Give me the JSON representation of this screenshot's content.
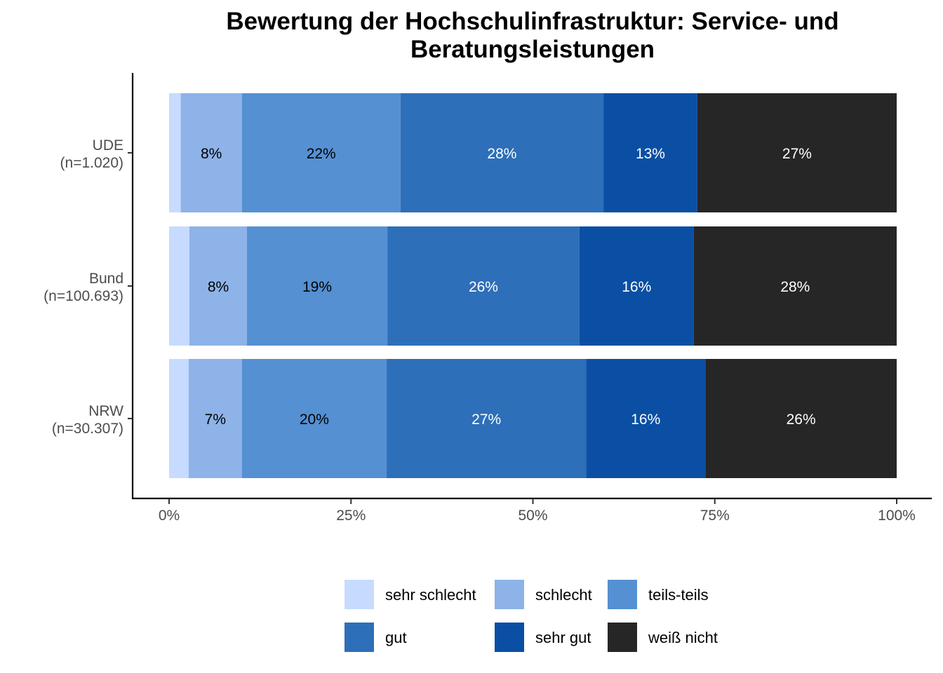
{
  "chart_data": {
    "type": "bar",
    "orientation": "horizontal",
    "stacked": true,
    "title": "Bewertung der Hochschulinfrastruktur: Service- und Beratungsleistungen",
    "title_lines": [
      "Bewertung der Hochschulinfrastruktur: Service- und",
      "Beratungsleistungen"
    ],
    "categories": [
      {
        "name": "UDE",
        "n": "(n=1.020)"
      },
      {
        "name": "Bund",
        "n": "(n=100.693)"
      },
      {
        "name": "NRW",
        "n": "(n=30.307)"
      }
    ],
    "series": [
      {
        "name": "sehr schlecht",
        "color": "#c6dbff",
        "label_color": "#000000",
        "values": [
          1.6,
          2.8,
          2.7
        ],
        "labels": [
          "",
          "",
          ""
        ]
      },
      {
        "name": "schlecht",
        "color": "#8db3e8",
        "label_color": "#000000",
        "values": [
          8.4,
          7.9,
          7.3
        ],
        "labels": [
          "8%",
          "8%",
          "7%"
        ]
      },
      {
        "name": "teils-teils",
        "color": "#5590d2",
        "label_color": "#000000",
        "values": [
          21.8,
          19.3,
          19.9
        ],
        "labels": [
          "22%",
          "19%",
          "20%"
        ]
      },
      {
        "name": "gut",
        "color": "#2d6fb8",
        "label_color": "#ffffff",
        "values": [
          27.9,
          26.4,
          27.4
        ],
        "labels": [
          "28%",
          "26%",
          "27%"
        ]
      },
      {
        "name": "sehr gut",
        "color": "#0a4fa3",
        "label_color": "#ffffff",
        "values": [
          12.9,
          15.7,
          16.4
        ],
        "labels": [
          "13%",
          "16%",
          "16%"
        ]
      },
      {
        "name": "weiß nicht",
        "color": "#262626",
        "label_color": "#ffffff",
        "values": [
          27.4,
          27.9,
          26.3
        ],
        "labels": [
          "27%",
          "28%",
          "26%"
        ]
      }
    ],
    "xlim": [
      0,
      100
    ],
    "x_ticks": [
      0,
      25,
      50,
      75,
      100
    ],
    "x_tick_labels": [
      "0%",
      "25%",
      "50%",
      "75%",
      "100%"
    ],
    "xlabel": "",
    "ylabel": "",
    "grid": false,
    "legend_position": "bottom"
  }
}
